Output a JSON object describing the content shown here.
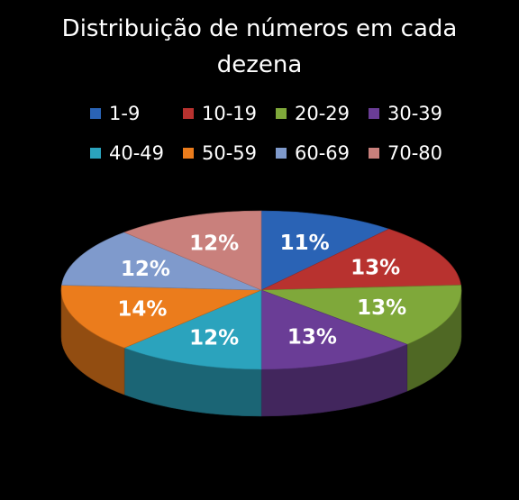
{
  "chart_data": {
    "type": "pie",
    "title": "Distribuição de números em cada dezena",
    "title_lines": [
      "Distribuição de números em cada",
      "dezena"
    ],
    "categories": [
      "1-9",
      "10-19",
      "20-29",
      "30-39",
      "40-49",
      "50-59",
      "60-69",
      "70-80"
    ],
    "values": [
      11,
      13,
      13,
      13,
      12,
      14,
      12,
      12
    ],
    "data_labels": [
      "11%",
      "13%",
      "13%",
      "13%",
      "12%",
      "14%",
      "12%",
      "12%"
    ],
    "colors": [
      "#2a63b5",
      "#b8322f",
      "#7fa83a",
      "#6a3d96",
      "#2ba3bd",
      "#eb7c1c",
      "#7f9acc",
      "#c9807c"
    ],
    "legend": "top",
    "style": "3d"
  }
}
